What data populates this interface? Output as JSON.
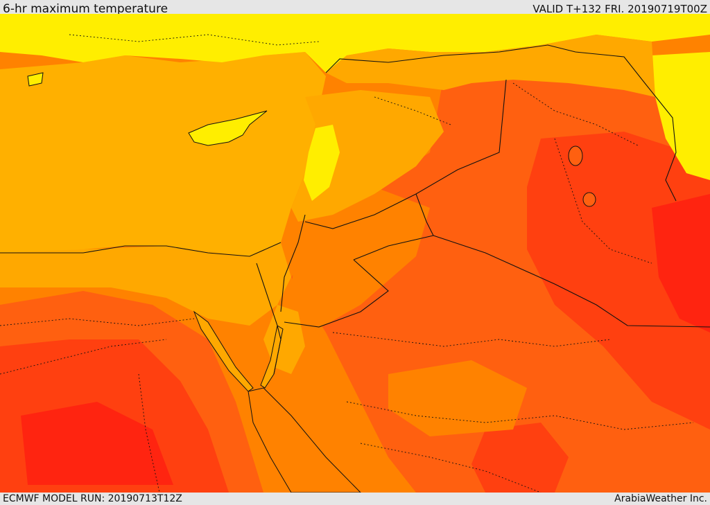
{
  "header": {
    "title": "6-hr maximum temperature",
    "valid": "VALID T+132 FRI. 20190719T00Z"
  },
  "footer": {
    "model_run": "ECMWF MODEL RUN: 20190713T12Z",
    "credit": "ArabiaWeather Inc."
  },
  "map": {
    "palette": {
      "sea": "#ffb000",
      "yellow": "#ffee00",
      "light_orange": "#ffa800",
      "orange": "#ff8200",
      "dark_orange": "#ff6010",
      "red_orange": "#ff4010",
      "red": "#ff2410",
      "border": "#111111"
    }
  }
}
